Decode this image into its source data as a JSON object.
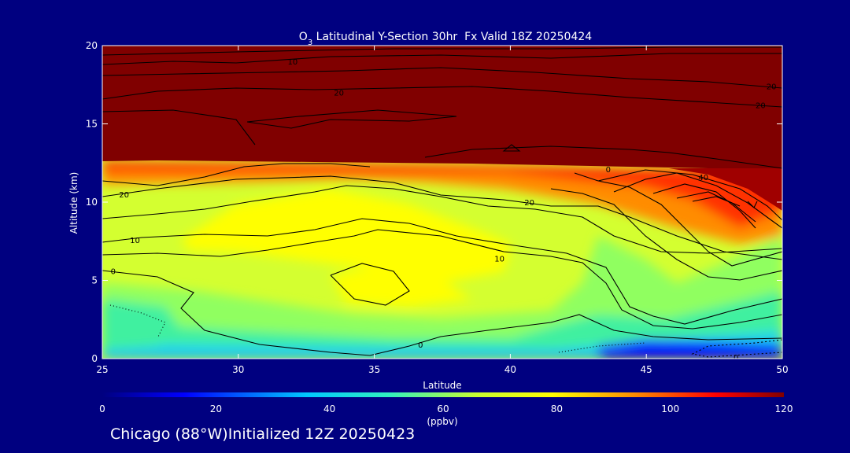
{
  "chart_data": {
    "type": "heatmap",
    "title_species": "O",
    "title_sub": "3",
    "title_rest": " Latitudinal Y-Section 30hr  Fx Valid 18Z 20250424",
    "xlabel": "Latitude",
    "ylabel": "Altitude (km)",
    "xlim": [
      25,
      50
    ],
    "ylim": [
      0,
      20
    ],
    "x_ticks": [
      "25",
      "30",
      "35",
      "40",
      "45",
      "50"
    ],
    "y_ticks": [
      "0",
      "5",
      "10",
      "15",
      "20"
    ],
    "colorbar": {
      "label": "(ppbv)",
      "range": [
        0,
        120
      ],
      "ticks": [
        "0",
        "20",
        "40",
        "60",
        "80",
        "100",
        "120"
      ]
    },
    "contour_labels": [
      {
        "text": "10",
        "lat": 32.0,
        "alt": 19.0
      },
      {
        "text": "20",
        "lat": 33.7,
        "alt": 17.0
      },
      {
        "text": "20",
        "lat": 49.6,
        "alt": 17.4
      },
      {
        "text": "20",
        "lat": 49.2,
        "alt": 16.2
      },
      {
        "text": "20",
        "lat": 25.8,
        "alt": 10.5
      },
      {
        "text": "20",
        "lat": 40.7,
        "alt": 10.0
      },
      {
        "text": "10",
        "lat": 26.2,
        "alt": 7.6
      },
      {
        "text": "10",
        "lat": 39.6,
        "alt": 6.4
      },
      {
        "text": "0",
        "lat": 25.4,
        "alt": 5.6
      },
      {
        "text": "0",
        "lat": 36.7,
        "alt": 0.9
      },
      {
        "text": "0",
        "lat": 48.3,
        "alt": 0.1
      },
      {
        "text": "0",
        "lat": 43.6,
        "alt": 12.1
      },
      {
        "text": "40",
        "lat": 47.1,
        "alt": 11.6
      }
    ]
  },
  "footer": {
    "text": "Chicago (88°W)Initialized 12Z 20250423"
  },
  "colors": {
    "background": "#000080",
    "text": "#ffffff",
    "contour": "#000000"
  }
}
